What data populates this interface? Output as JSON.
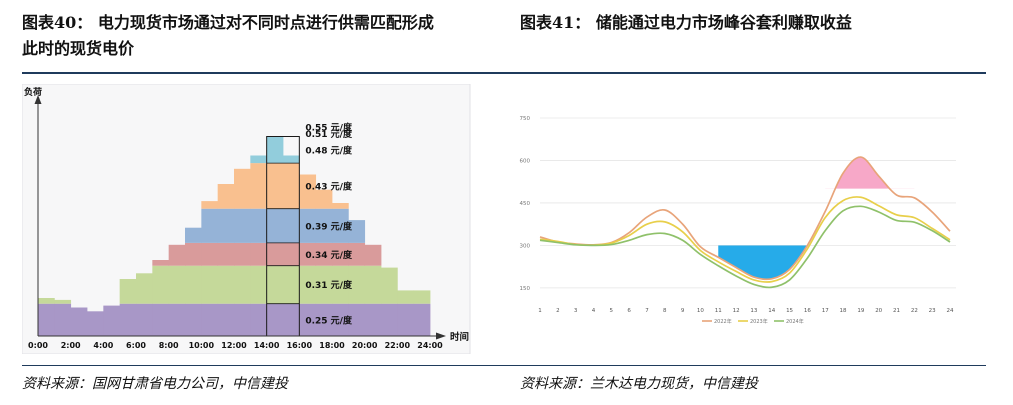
{
  "figures": [
    {
      "label": "图表40：",
      "title_line1": "电力现货市场通过对不同时点进行供需匹配形成",
      "title_line2": "此时的现货电价",
      "source": "资料来源：国网甘肃省电力公司，中信建投"
    },
    {
      "label": "图表41：",
      "title_line1": "储能通过电力市场峰谷套利赚取收益",
      "source": "资料来源：兰木达电力现货，中信建投"
    }
  ],
  "chart_data": [
    {
      "type": "area",
      "ylabel": "负荷",
      "xlabel": "时间",
      "x_ticks": [
        "0:00",
        "2:00",
        "4:00",
        "6:00",
        "8:00",
        "10:00",
        "12:00",
        "14:00",
        "16:00",
        "18:00",
        "20:00",
        "22:00",
        "24:00"
      ],
      "xlim": [
        0,
        24
      ],
      "ylim": [
        0,
        100
      ],
      "load_profile_hourly": [
        20,
        19,
        15,
        13,
        16,
        30,
        33,
        40,
        48,
        57,
        71,
        80,
        88,
        95,
        105,
        95,
        85,
        77,
        70,
        61,
        48,
        36,
        24,
        24
      ],
      "price_bands": [
        {
          "label": "0.25 元/度",
          "lower": 0,
          "upper": 17,
          "color": "#a897c7"
        },
        {
          "label": "0.31 元/度",
          "lower": 17,
          "upper": 37,
          "color": "#c5d99a"
        },
        {
          "label": "0.34 元/度",
          "lower": 37,
          "upper": 49,
          "color": "#d99b9b"
        },
        {
          "label": "0.39 元/度",
          "lower": 49,
          "upper": 67,
          "color": "#95b3d7"
        },
        {
          "label": "0.43 元/度",
          "lower": 67,
          "upper": 91,
          "color": "#f9c08f"
        },
        {
          "label": "0.48 元/度",
          "lower": 91,
          "upper": 108,
          "color": "#92cddc"
        },
        {
          "label": "0.51 元/度",
          "lower": 108,
          "upper": 115,
          "color": "#366092"
        },
        {
          "label": "0.55 元/度",
          "lower": 115,
          "upper": 120,
          "color": "#953735"
        }
      ],
      "highlight_interval": [
        14,
        16
      ]
    },
    {
      "type": "line",
      "y_ticks": [
        150,
        300,
        450,
        600,
        750
      ],
      "ylim": [
        100,
        750
      ],
      "categories": [
        "1",
        "2",
        "3",
        "4",
        "5",
        "6",
        "7",
        "8",
        "9",
        "10",
        "11",
        "12",
        "13",
        "14",
        "15",
        "16",
        "17",
        "18",
        "19",
        "20",
        "21",
        "22",
        "23",
        "24"
      ],
      "series": [
        {
          "name": "2022年",
          "color": "#e8a47a",
          "values": [
            330,
            312,
            305,
            302,
            310,
            345,
            400,
            425,
            375,
            295,
            258,
            222,
            188,
            182,
            215,
            300,
            420,
            555,
            612,
            545,
            478,
            468,
            418,
            350
          ]
        },
        {
          "name": "2023年",
          "color": "#e8cf4a",
          "values": [
            322,
            314,
            303,
            301,
            308,
            335,
            375,
            383,
            348,
            282,
            242,
            208,
            178,
            172,
            202,
            288,
            398,
            458,
            470,
            440,
            408,
            398,
            360,
            320
          ]
        },
        {
          "name": "2024年",
          "color": "#8fc16a",
          "values": [
            318,
            310,
            302,
            300,
            303,
            318,
            338,
            342,
            318,
            268,
            228,
            192,
            162,
            152,
            178,
            255,
            352,
            422,
            438,
            418,
            388,
            382,
            352,
            312
          ]
        }
      ],
      "fill_low": {
        "color": "#1aa6e8",
        "threshold": 300
      },
      "fill_high": {
        "color": "#f7a3c5",
        "threshold": 500
      }
    }
  ]
}
